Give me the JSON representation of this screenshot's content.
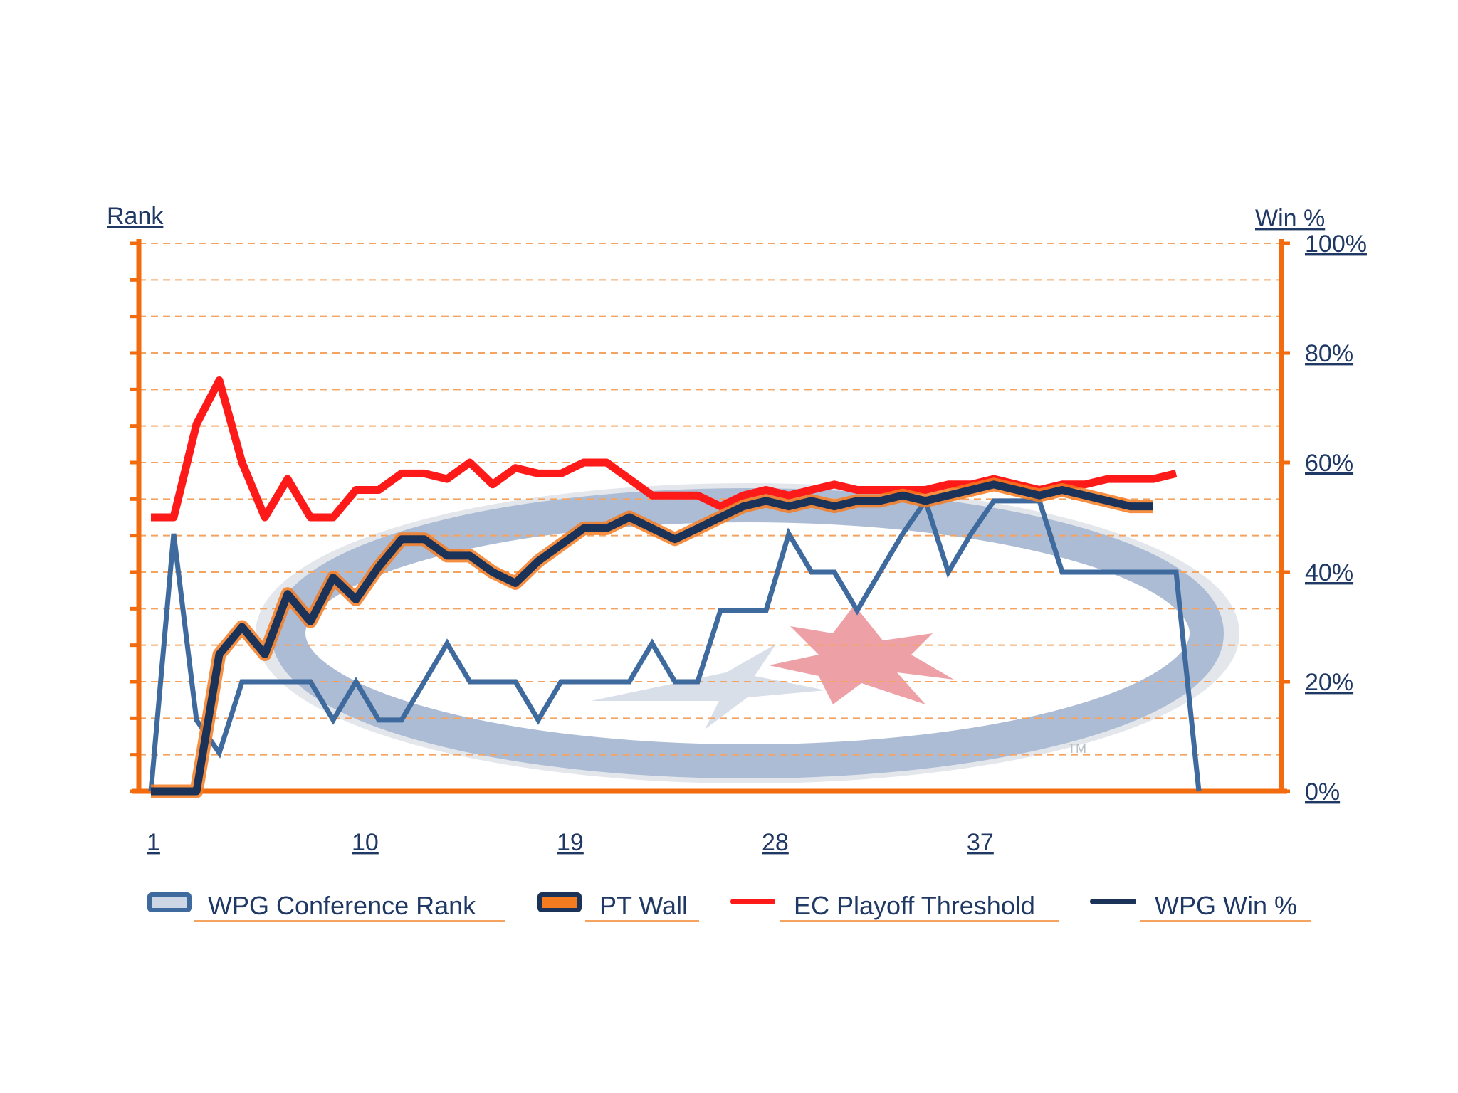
{
  "colors": {
    "axis": "#f26b0f",
    "grid": "#f4a460",
    "label_text": "#1f3864",
    "rank_line": "#3f6a9e",
    "pt_wall_glow": "#f47b20",
    "playoff_threshold": "#ff1a1a",
    "win_pct": "#1b3358",
    "logo_ring": "#8aa0c4",
    "logo_leaf": "#e0303a"
  },
  "chart_data": {
    "type": "line",
    "left_axis_label": "Rank",
    "right_axis_label": "Win %",
    "right_axis": {
      "ylim": [
        0,
        1
      ],
      "ticks": [
        "100%",
        "80%",
        "60%",
        "40%",
        "20%",
        "0%"
      ],
      "tick_values": [
        1.0,
        0.8,
        0.6,
        0.4,
        0.2,
        0.0
      ]
    },
    "x_ticks": [
      "1",
      "10",
      "19",
      "28",
      "37"
    ],
    "x_tick_values": [
      1,
      10,
      19,
      28,
      37
    ],
    "xlim": [
      1,
      45
    ],
    "grid": true,
    "legend_position": "bottom",
    "legend": [
      {
        "label": "WPG Conference Rank",
        "icon": "rank-swatch-icon"
      },
      {
        "label": "PT Wall",
        "icon": "pt-wall-swatch-icon"
      },
      {
        "label": "EC Playoff Threshold",
        "icon": "threshold-line-icon"
      },
      {
        "label": "WPG Win %",
        "icon": "win-line-icon"
      }
    ],
    "series": [
      {
        "name": "WPG Conference Rank",
        "axis": "win_pct_scale",
        "values": [
          0.0,
          0.47,
          0.13,
          0.07,
          0.2,
          0.2,
          0.2,
          0.2,
          0.13,
          0.2,
          0.13,
          0.13,
          0.2,
          0.27,
          0.2,
          0.2,
          0.2,
          0.13,
          0.2,
          0.2,
          0.2,
          0.2,
          0.27,
          0.2,
          0.2,
          0.33,
          0.33,
          0.33,
          0.47,
          0.4,
          0.4,
          0.33,
          0.4,
          0.47,
          0.53,
          0.4,
          0.47,
          0.53,
          0.53,
          0.53,
          0.4,
          0.4,
          0.4,
          0.4,
          0.4,
          0.4,
          0.0
        ]
      },
      {
        "name": "EC Playoff Threshold",
        "axis": "win_pct_scale",
        "values": [
          0.5,
          0.5,
          0.67,
          0.75,
          0.6,
          0.5,
          0.57,
          0.5,
          0.5,
          0.55,
          0.55,
          0.58,
          0.58,
          0.57,
          0.6,
          0.56,
          0.59,
          0.58,
          0.58,
          0.6,
          0.6,
          0.57,
          0.54,
          0.54,
          0.54,
          0.52,
          0.54,
          0.55,
          0.54,
          0.55,
          0.56,
          0.55,
          0.55,
          0.55,
          0.55,
          0.56,
          0.56,
          0.57,
          0.56,
          0.55,
          0.56,
          0.56,
          0.57,
          0.57,
          0.57,
          0.58
        ]
      },
      {
        "name": "WPG Win %",
        "axis": "win_pct_scale",
        "values": [
          0.0,
          0.0,
          0.0,
          0.25,
          0.3,
          0.25,
          0.36,
          0.31,
          0.39,
          0.35,
          0.41,
          0.46,
          0.46,
          0.43,
          0.43,
          0.4,
          0.38,
          0.42,
          0.45,
          0.48,
          0.48,
          0.5,
          0.48,
          0.46,
          0.48,
          0.5,
          0.52,
          0.53,
          0.52,
          0.53,
          0.52,
          0.53,
          0.53,
          0.54,
          0.53,
          0.54,
          0.55,
          0.56,
          0.55,
          0.54,
          0.55,
          0.54,
          0.53,
          0.52,
          0.52
        ]
      }
    ]
  },
  "logo": {
    "trademark": "TM"
  }
}
